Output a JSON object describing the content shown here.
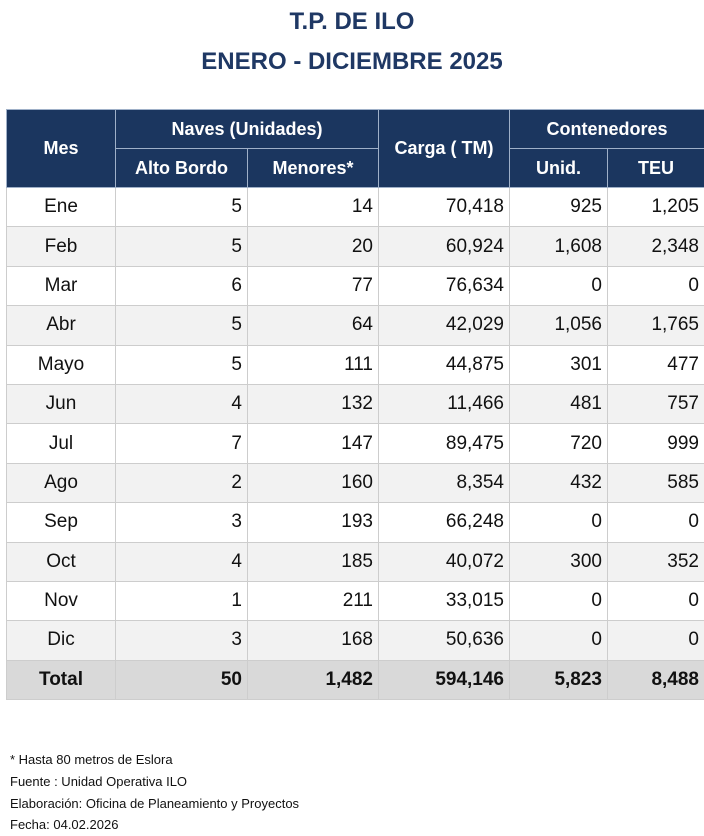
{
  "title": "T.P. DE ILO",
  "subtitle": "ENERO - DICIEMBRE 2025",
  "headers": {
    "mes": "Mes",
    "naves": "Naves (Unidades)",
    "alto_bordo": "Alto Bordo",
    "menores": "Menores*",
    "carga": "Carga ( TM)",
    "contenedores": "Contenedores",
    "unid": "Unid.",
    "teu": "TEU"
  },
  "rows": [
    [
      "Ene",
      "5",
      "14",
      "70,418",
      "925",
      "1,205"
    ],
    [
      "Feb",
      "5",
      "20",
      "60,924",
      "1,608",
      "2,348"
    ],
    [
      "Mar",
      "6",
      "77",
      "76,634",
      "0",
      "0"
    ],
    [
      "Abr",
      "5",
      "64",
      "42,029",
      "1,056",
      "1,765"
    ],
    [
      "Mayo",
      "5",
      "111",
      "44,875",
      "301",
      "477"
    ],
    [
      "Jun",
      "4",
      "132",
      "11,466",
      "481",
      "757"
    ],
    [
      "Jul",
      "7",
      "147",
      "89,475",
      "720",
      "999"
    ],
    [
      "Ago",
      "2",
      "160",
      "8,354",
      "432",
      "585"
    ],
    [
      "Sep",
      "3",
      "193",
      "66,248",
      "0",
      "0"
    ],
    [
      "Oct",
      "4",
      "185",
      "40,072",
      "300",
      "352"
    ],
    [
      "Nov",
      "1",
      "211",
      "33,015",
      "0",
      "0"
    ],
    [
      "Dic",
      "3",
      "168",
      "50,636",
      "0",
      "0"
    ]
  ],
  "total": [
    "Total",
    "50",
    "1,482",
    "594,146",
    "5,823",
    "8,488"
  ],
  "notes": [
    "* Hasta 80 metros de Eslora",
    "Fuente : Unidad Operativa ILO",
    "Elaboración: Oficina de Planeamiento y Proyectos",
    "Fecha: 04.02.2026"
  ]
}
